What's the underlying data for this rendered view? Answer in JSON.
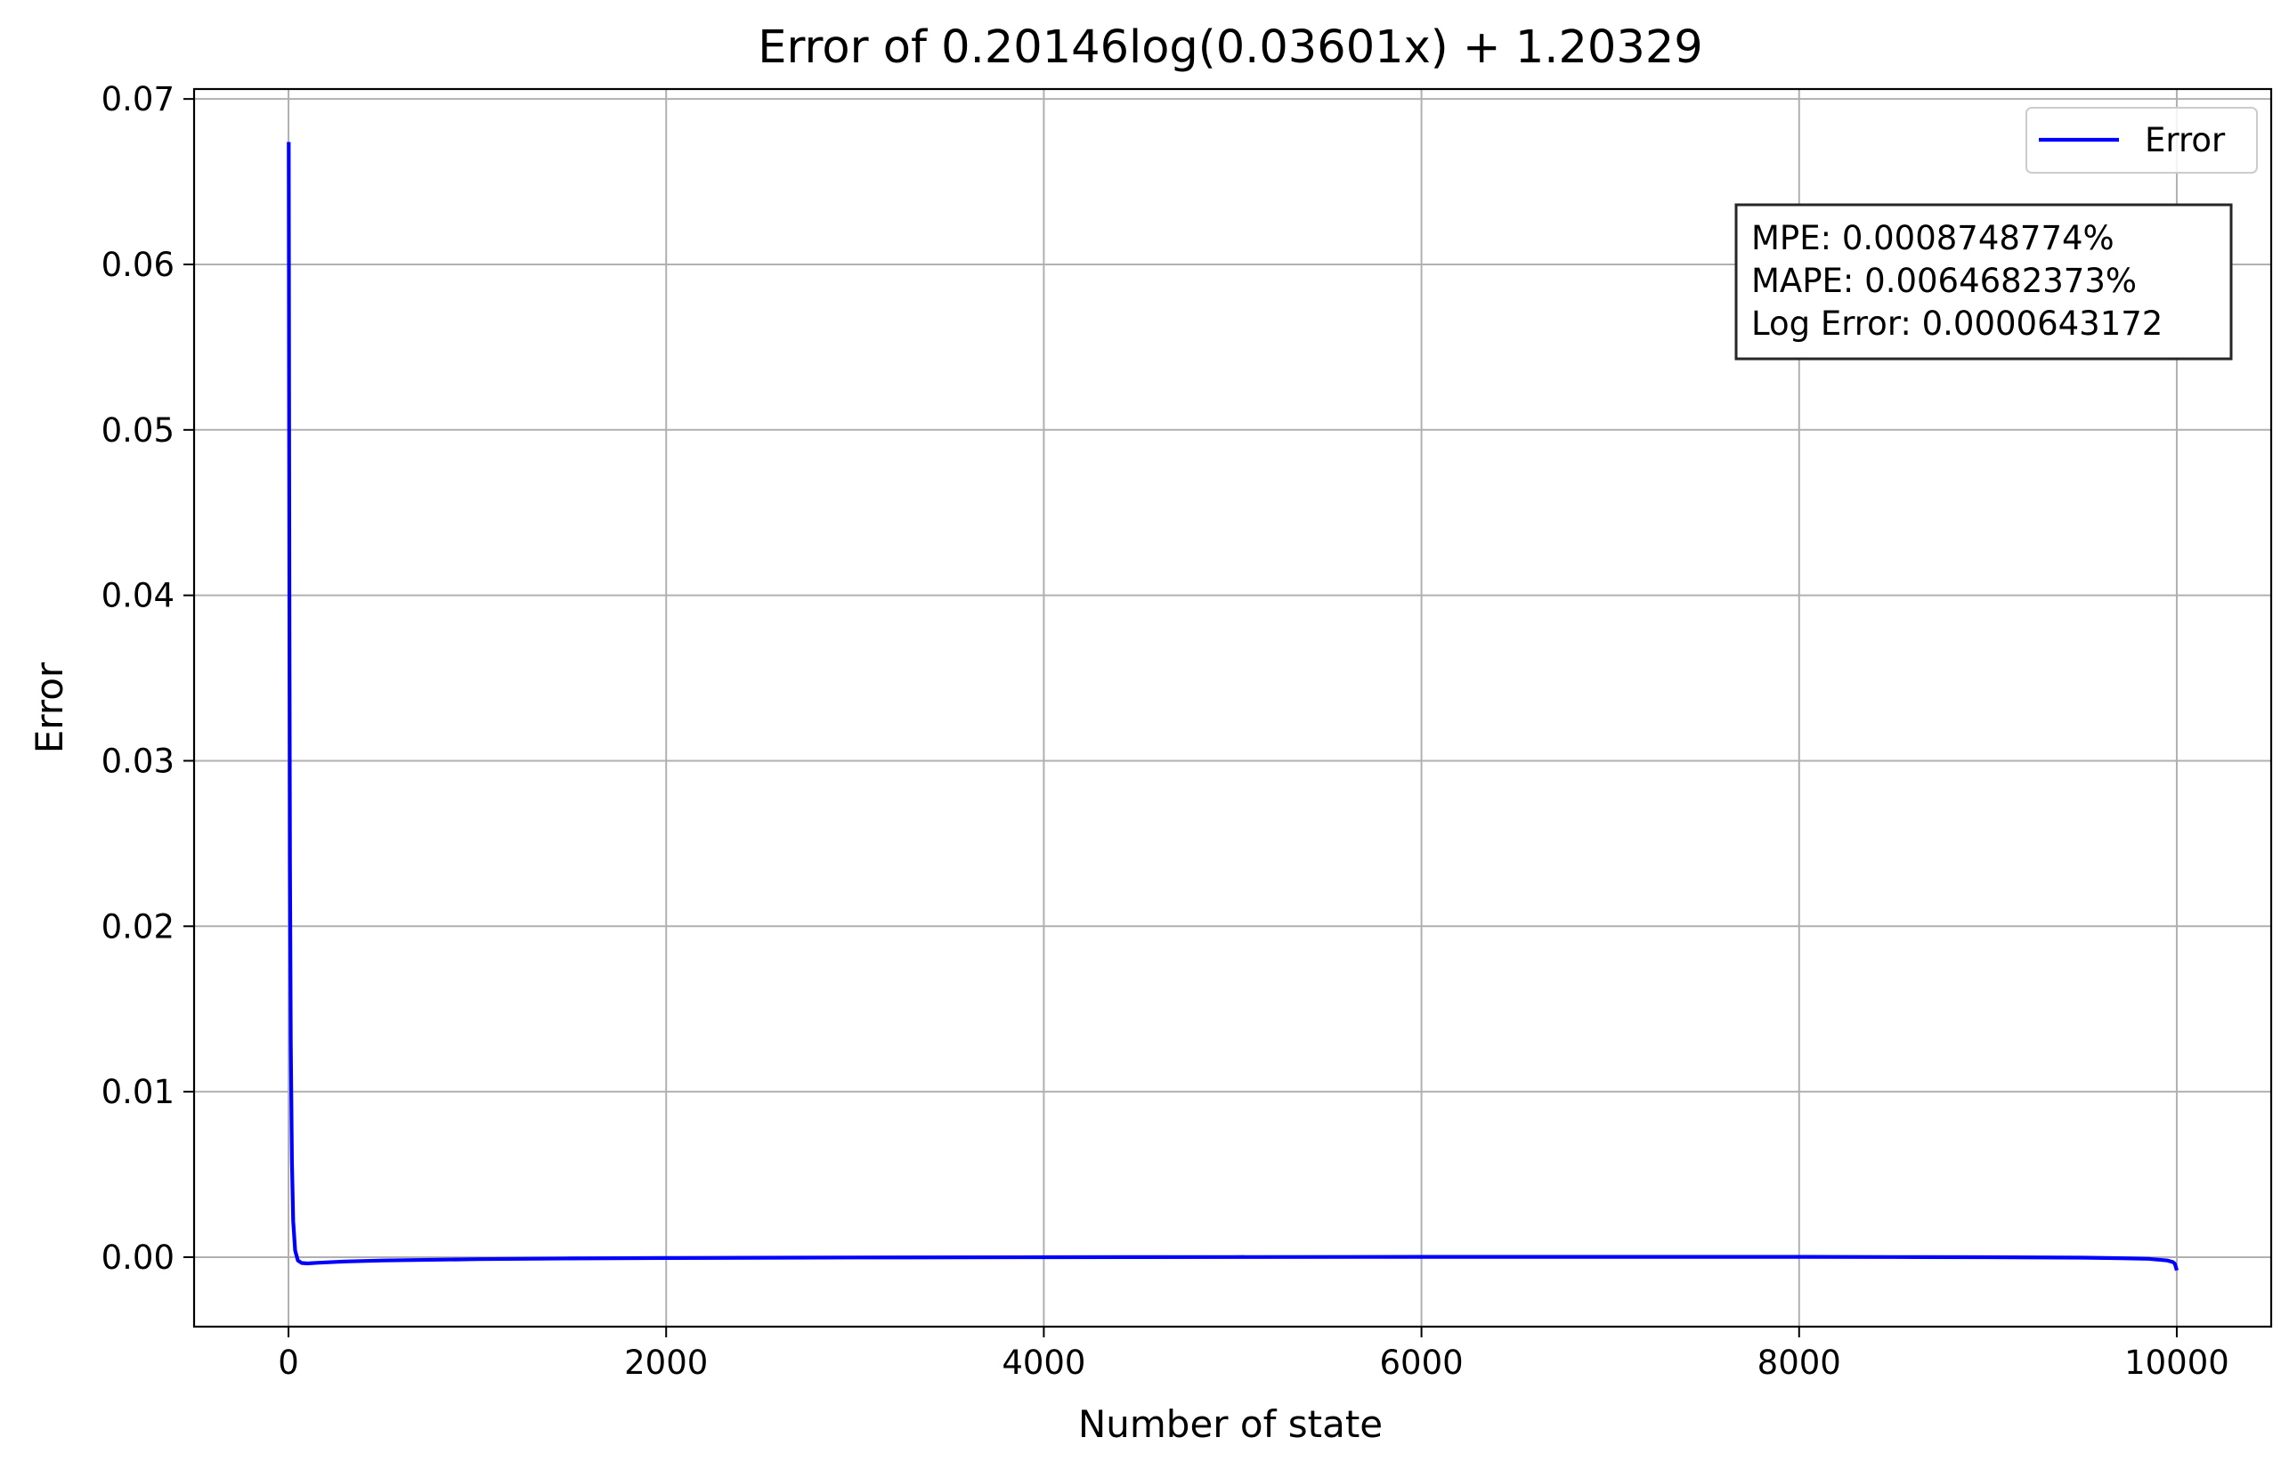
{
  "chart_data": {
    "type": "line",
    "title": "Error of 0.20146log(0.03601x) + 1.20329",
    "xlabel": "Number of state",
    "ylabel": "Error",
    "xlim": [
      -500,
      10500
    ],
    "ylim": [
      -0.0042,
      0.0706
    ],
    "x_ticks": [
      0,
      2000,
      4000,
      6000,
      8000,
      10000
    ],
    "x_tick_labels": [
      "0",
      "2000",
      "4000",
      "6000",
      "8000",
      "10000"
    ],
    "y_ticks": [
      0.0,
      0.01,
      0.02,
      0.03,
      0.04,
      0.05,
      0.06,
      0.07
    ],
    "y_tick_labels": [
      "0.00",
      "0.01",
      "0.02",
      "0.03",
      "0.04",
      "0.05",
      "0.06",
      "0.07"
    ],
    "grid": true,
    "legend": {
      "position": "top-right",
      "entries": [
        "Error"
      ]
    },
    "stats_box": {
      "position": "top-right",
      "lines": [
        "MPE: 0.0008748774%",
        "MAPE: 0.0064682373%",
        "Log Error: 0.0000643172"
      ]
    },
    "series": [
      {
        "name": "Error",
        "color": "#0000ff",
        "x": [
          1,
          3,
          5,
          8,
          12,
          18,
          25,
          35,
          50,
          70,
          100,
          150,
          300,
          500,
          1000,
          1500,
          2000,
          3000,
          4000,
          5000,
          6000,
          7000,
          8000,
          8500,
          9000,
          9500,
          9700,
          9850,
          9950,
          9980,
          9990,
          10000
        ],
        "y": [
          0.0674,
          0.052,
          0.038,
          0.024,
          0.013,
          0.0058,
          0.0022,
          0.0004,
          -0.0002,
          -0.00035,
          -0.00038,
          -0.00034,
          -0.00026,
          -0.0002,
          -0.00012,
          -8e-05,
          -5e-05,
          -2e-05,
          0.0,
          1e-05,
          2e-05,
          2e-05,
          2e-05,
          1e-05,
          0.0,
          -3e-05,
          -6e-05,
          -0.0001,
          -0.0002,
          -0.0003,
          -0.0004,
          -0.0008
        ]
      }
    ]
  }
}
